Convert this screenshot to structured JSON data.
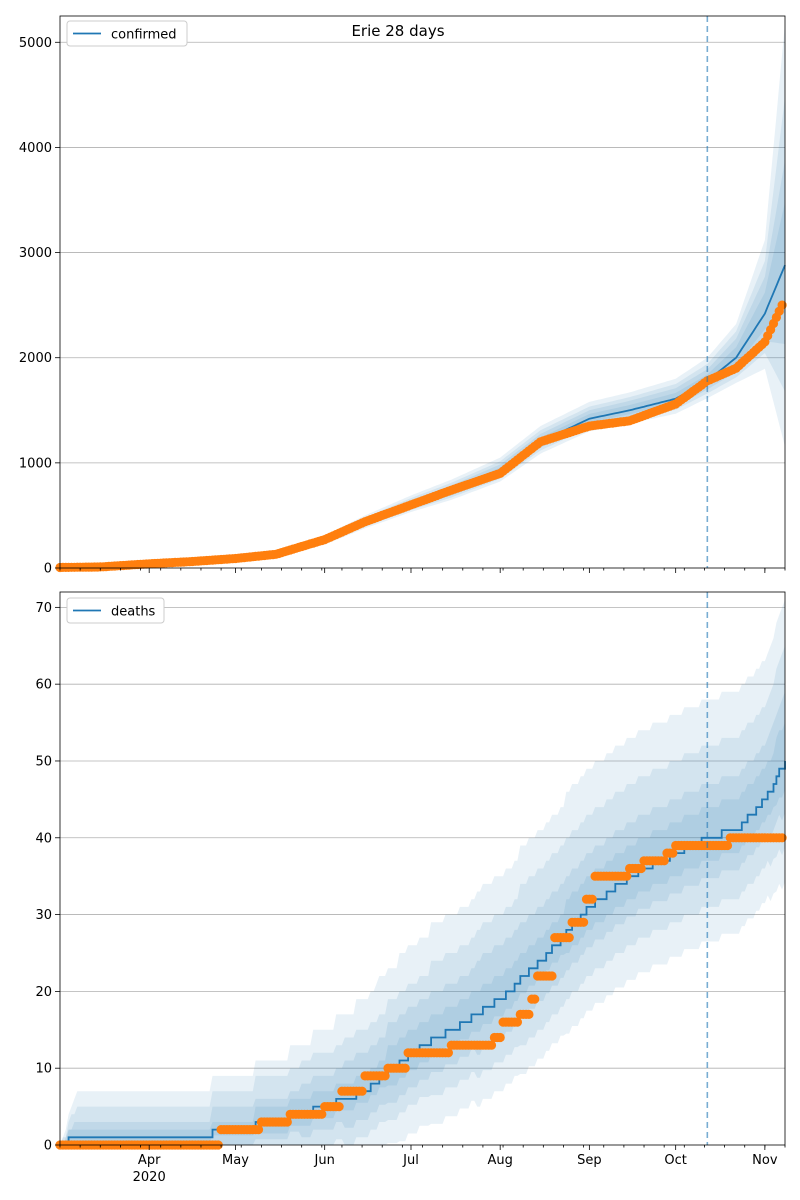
{
  "figure": {
    "title": "Erie 28 days"
  },
  "chart_data": [
    {
      "type": "line",
      "title": "Erie 28 days",
      "legend": {
        "entries": [
          "confirmed"
        ],
        "placement": "top-left"
      },
      "xlim": [
        "2020-03-01",
        "2020-11-08"
      ],
      "ylim": [
        0,
        5250
      ],
      "y_ticks": [
        0,
        1000,
        2000,
        3000,
        4000,
        5000
      ],
      "grid": "y",
      "x_tick_labels_visible": false,
      "vline": {
        "x": "2020-10-12",
        "style": "dashed"
      },
      "model_series": {
        "name": "confirmed",
        "color": "#1f77b4",
        "x": [
          "2020-03-01",
          "2020-03-15",
          "2020-04-01",
          "2020-04-15",
          "2020-05-01",
          "2020-05-15",
          "2020-06-01",
          "2020-06-15",
          "2020-07-01",
          "2020-07-15",
          "2020-08-01",
          "2020-08-15",
          "2020-09-01",
          "2020-09-15",
          "2020-10-01",
          "2020-10-12",
          "2020-10-22",
          "2020-11-01",
          "2020-11-08"
        ],
        "y": [
          5,
          10,
          40,
          60,
          90,
          130,
          260,
          430,
          600,
          730,
          920,
          1200,
          1420,
          1500,
          1610,
          1780,
          2000,
          2420,
          2880
        ],
        "band_spread": [
          [
            0,
            0,
            10,
            20,
            20,
            30,
            50,
            70,
            90,
            110,
            130,
            150,
            160,
            170,
            190,
            220,
            320,
            700,
            2300
          ],
          [
            0,
            0,
            8,
            12,
            15,
            20,
            35,
            50,
            65,
            80,
            95,
            110,
            115,
            125,
            140,
            160,
            250,
            500,
            1600
          ],
          [
            0,
            0,
            5,
            8,
            10,
            15,
            25,
            35,
            45,
            55,
            65,
            75,
            80,
            90,
            100,
            110,
            180,
            350,
            1000
          ],
          [
            0,
            0,
            3,
            4,
            5,
            8,
            12,
            18,
            25,
            30,
            35,
            40,
            45,
            50,
            55,
            60,
            100,
            200,
            600
          ]
        ]
      },
      "observed_series": {
        "color": "#ff7f0e",
        "x": [
          "2020-03-01",
          "2020-03-15",
          "2020-04-01",
          "2020-04-15",
          "2020-05-01",
          "2020-05-15",
          "2020-06-01",
          "2020-06-15",
          "2020-07-01",
          "2020-07-15",
          "2020-08-01",
          "2020-08-15",
          "2020-09-01",
          "2020-09-15",
          "2020-10-01",
          "2020-10-12",
          "2020-10-22",
          "2020-11-01",
          "2020-11-07"
        ],
        "y": [
          5,
          10,
          40,
          60,
          90,
          130,
          270,
          440,
          600,
          740,
          900,
          1200,
          1350,
          1400,
          1560,
          1780,
          1900,
          2150,
          2500
        ]
      }
    },
    {
      "type": "line",
      "legend": {
        "entries": [
          "deaths"
        ],
        "placement": "top-left"
      },
      "xlim": [
        "2020-03-01",
        "2020-11-08"
      ],
      "ylim": [
        0,
        72
      ],
      "y_ticks": [
        0,
        10,
        20,
        30,
        40,
        50,
        60,
        70
      ],
      "grid": "y",
      "x_ticks": [
        {
          "date": "2020-04-01",
          "label": "Apr",
          "sublabel": "2020"
        },
        {
          "date": "2020-05-01",
          "label": "May"
        },
        {
          "date": "2020-06-01",
          "label": "Jun"
        },
        {
          "date": "2020-07-01",
          "label": "Jul"
        },
        {
          "date": "2020-08-01",
          "label": "Aug"
        },
        {
          "date": "2020-09-01",
          "label": "Sep"
        },
        {
          "date": "2020-10-01",
          "label": "Oct"
        },
        {
          "date": "2020-11-01",
          "label": "Nov"
        }
      ],
      "vline": {
        "x": "2020-10-12",
        "style": "dashed"
      },
      "model_series": {
        "name": "deaths",
        "color": "#1f77b4",
        "step": true,
        "x": [
          "2020-03-01",
          "2020-03-07",
          "2020-04-15",
          "2020-05-01",
          "2020-05-15",
          "2020-06-01",
          "2020-06-15",
          "2020-07-01",
          "2020-07-15",
          "2020-08-01",
          "2020-08-15",
          "2020-09-01",
          "2020-09-15",
          "2020-10-01",
          "2020-10-12",
          "2020-10-22",
          "2020-11-01",
          "2020-11-08"
        ],
        "y": [
          0,
          1,
          1,
          2,
          3,
          5,
          7,
          12,
          15,
          19,
          24,
          31,
          35,
          38,
          40,
          41,
          45,
          50
        ],
        "band_spread": [
          [
            0,
            6,
            6,
            7,
            8,
            10,
            12,
            14,
            15,
            16,
            17,
            18,
            18,
            18,
            18,
            18,
            18,
            21
          ],
          [
            0,
            4,
            4,
            5,
            6,
            7,
            8,
            9,
            10,
            11,
            12,
            12,
            12,
            12,
            12,
            12,
            12,
            15
          ],
          [
            0,
            2,
            2,
            3,
            3,
            4,
            5,
            6,
            6,
            7,
            7,
            7,
            7,
            7,
            7,
            7,
            7,
            9
          ],
          [
            0,
            1,
            1,
            1,
            2,
            2,
            2,
            3,
            3,
            3,
            3,
            4,
            4,
            4,
            4,
            4,
            4,
            5
          ]
        ]
      },
      "observed_series": {
        "color": "#ff7f0e",
        "step": true,
        "x": [
          "2020-03-01",
          "2020-04-15",
          "2020-04-26",
          "2020-05-10",
          "2020-05-20",
          "2020-06-01",
          "2020-06-07",
          "2020-06-15",
          "2020-06-23",
          "2020-06-30",
          "2020-07-15",
          "2020-07-30",
          "2020-08-02",
          "2020-08-08",
          "2020-08-12",
          "2020-08-14",
          "2020-08-20",
          "2020-08-26",
          "2020-08-31",
          "2020-09-03",
          "2020-09-15",
          "2020-09-20",
          "2020-09-28",
          "2020-10-01",
          "2020-10-12",
          "2020-10-20",
          "2020-11-01",
          "2020-11-07"
        ],
        "y": [
          0,
          0,
          2,
          3,
          4,
          5,
          7,
          9,
          10,
          12,
          13,
          14,
          16,
          17,
          19,
          22,
          27,
          29,
          32,
          35,
          36,
          37,
          38,
          39,
          39,
          40,
          40,
          40
        ]
      }
    }
  ]
}
